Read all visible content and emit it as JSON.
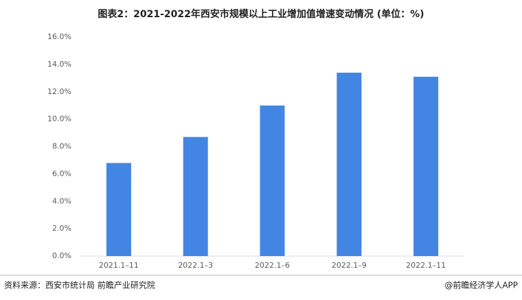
{
  "chart_data": {
    "type": "bar",
    "title": "图表2：2021-2022年西安市规模以上工业增加值增速变动情况 (单位：%)",
    "categories": [
      "2021.1–11",
      "2022.1–3",
      "2022.1–6",
      "2022.1–9",
      "2022.1–11"
    ],
    "values": [
      6.8,
      8.7,
      11.0,
      13.4,
      13.1
    ],
    "color": "#4285e3",
    "ylim": [
      0,
      16
    ],
    "yticks": [
      {
        "value": 0,
        "label": "0.0%"
      },
      {
        "value": 2,
        "label": "2.0%"
      },
      {
        "value": 4,
        "label": "4.0%"
      },
      {
        "value": 6,
        "label": "6.0%"
      },
      {
        "value": 8,
        "label": "8.0%"
      },
      {
        "value": 10,
        "label": "10.0%"
      },
      {
        "value": 12,
        "label": "12.0%"
      },
      {
        "value": 14,
        "label": "14.0%"
      },
      {
        "value": 16,
        "label": "16.0%"
      }
    ],
    "grid": false,
    "source": "资料来源：西安市统计局 前瞻产业研究院",
    "credit": "@前瞻经济学人APP"
  }
}
